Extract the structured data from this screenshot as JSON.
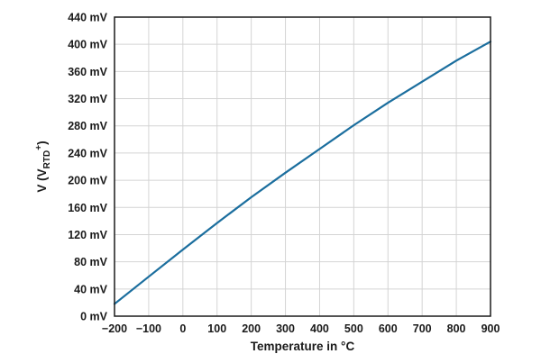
{
  "chart_data": {
    "type": "line",
    "title": "",
    "xlabel": "Temperature in °C",
    "ylabel": {
      "prefix": "V (V",
      "subscript": "RTD",
      "superscript": "+",
      "suffix": ")"
    },
    "xlim": [
      -200,
      900
    ],
    "ylim": [
      0,
      440
    ],
    "x_ticks": [
      -200,
      -100,
      0,
      100,
      200,
      300,
      400,
      500,
      600,
      700,
      800,
      900
    ],
    "y_ticks": [
      0,
      40,
      80,
      120,
      160,
      200,
      240,
      280,
      320,
      360,
      400,
      440
    ],
    "y_unit": "mV",
    "grid": true,
    "series": [
      {
        "color": "#1b6e9e",
        "x": [
          -200,
          -100,
          0,
          100,
          200,
          300,
          400,
          500,
          600,
          700,
          800,
          900
        ],
        "y": [
          18,
          58,
          98,
          137,
          175,
          211,
          246,
          281,
          314,
          345,
          376,
          404
        ]
      }
    ]
  }
}
